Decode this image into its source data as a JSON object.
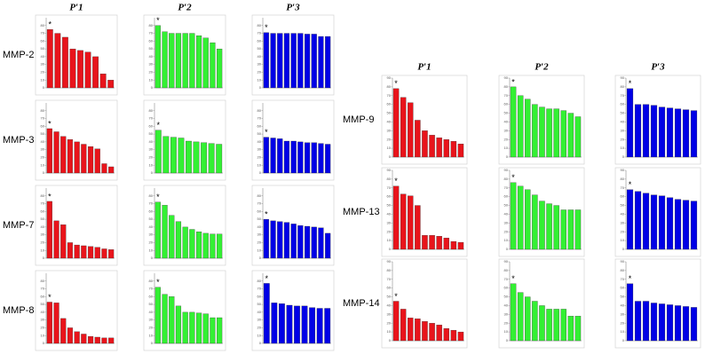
{
  "column_titles": [
    "P′1",
    "P′2",
    "P′3"
  ],
  "row_labels": [
    "MMP-2",
    "MMP-3",
    "MMP-7",
    "MMP-8",
    "MMP-9",
    "MMP-13",
    "MMP-14"
  ],
  "chart_data": [
    {
      "type": "bar",
      "color": "#e8141b",
      "annotation": "*",
      "ylim": [
        0,
        90
      ],
      "yticks": [
        0,
        10,
        20,
        30,
        40,
        50,
        60,
        70,
        80
      ],
      "values": [
        75,
        70,
        65,
        50,
        48,
        46,
        40,
        18,
        10
      ]
    },
    {
      "type": "bar",
      "color": "#33f033",
      "annotation": "*",
      "ylim": [
        0,
        90
      ],
      "yticks": [
        0,
        10,
        20,
        30,
        40,
        50,
        60,
        70,
        80
      ],
      "values": [
        80,
        72,
        70,
        70,
        70,
        70,
        67,
        64,
        58,
        50
      ]
    },
    {
      "type": "bar",
      "color": "#0000e6",
      "annotation": "*",
      "ylim": [
        0,
        90
      ],
      "yticks": [
        0,
        10,
        20,
        30,
        40,
        50,
        60,
        70,
        80
      ],
      "values": [
        71,
        70,
        70,
        70,
        70,
        70,
        69,
        69,
        66,
        66
      ]
    },
    {
      "type": "bar",
      "color": "#e8141b",
      "annotation": "*",
      "ylim": [
        0,
        90
      ],
      "yticks": [
        0,
        10,
        20,
        30,
        40,
        50,
        60,
        70,
        80
      ],
      "values": [
        57,
        53,
        47,
        43,
        40,
        37,
        34,
        31,
        12,
        8
      ]
    },
    {
      "type": "bar",
      "color": "#33f033",
      "annotation": "*",
      "ylim": [
        0,
        90
      ],
      "yticks": [
        0,
        10,
        20,
        30,
        40,
        50,
        60,
        70,
        80
      ],
      "values": [
        55,
        47,
        46,
        45,
        41,
        40,
        39,
        38,
        37
      ]
    },
    {
      "type": "bar",
      "color": "#0000e6",
      "annotation": "*",
      "ylim": [
        0,
        90
      ],
      "yticks": [
        0,
        10,
        20,
        30,
        40,
        50,
        60,
        70,
        80
      ],
      "values": [
        46,
        45,
        44,
        41,
        41,
        40,
        39,
        39,
        38,
        37
      ]
    },
    {
      "type": "bar",
      "color": "#e8141b",
      "annotation": "*",
      "ylim": [
        0,
        90
      ],
      "yticks": [
        0,
        10,
        20,
        30,
        40,
        50,
        60,
        70,
        80
      ],
      "values": [
        73,
        48,
        43,
        20,
        17,
        16,
        15,
        14,
        12,
        11
      ]
    },
    {
      "type": "bar",
      "color": "#33f033",
      "annotation": "*",
      "ylim": [
        0,
        90
      ],
      "yticks": [
        0,
        10,
        20,
        30,
        40,
        50,
        60,
        70,
        80
      ],
      "values": [
        72,
        68,
        55,
        47,
        40,
        37,
        34,
        32,
        31,
        31
      ]
    },
    {
      "type": "bar",
      "color": "#0000e6",
      "annotation": "*",
      "ylim": [
        0,
        90
      ],
      "yticks": [
        0,
        10,
        20,
        30,
        40,
        50,
        60,
        70,
        80
      ],
      "values": [
        50,
        48,
        47,
        46,
        44,
        42,
        41,
        40,
        39,
        32
      ]
    },
    {
      "type": "bar",
      "color": "#e8141b",
      "annotation": "*",
      "ylim": [
        0,
        90
      ],
      "yticks": [
        0,
        10,
        20,
        30,
        40,
        50,
        60,
        70,
        80
      ],
      "values": [
        53,
        52,
        32,
        20,
        15,
        12,
        9,
        8,
        7,
        7
      ]
    },
    {
      "type": "bar",
      "color": "#33f033",
      "annotation": "*",
      "ylim": [
        0,
        90
      ],
      "yticks": [
        0,
        10,
        20,
        30,
        40,
        50,
        60,
        70,
        80
      ],
      "values": [
        72,
        63,
        60,
        48,
        40,
        40,
        39,
        38,
        33,
        33
      ]
    },
    {
      "type": "bar",
      "color": "#0000e6",
      "annotation": "*",
      "ylim": [
        0,
        90
      ],
      "yticks": [
        0,
        10,
        20,
        30,
        40,
        50,
        60,
        70,
        80
      ],
      "values": [
        77,
        52,
        51,
        49,
        48,
        48,
        46,
        45,
        45
      ]
    },
    {
      "type": "bar",
      "color": "#e8141b",
      "annotation": "*",
      "ylim": [
        0,
        90
      ],
      "yticks": [
        0,
        10,
        20,
        30,
        40,
        50,
        60,
        70,
        80,
        90
      ],
      "values": [
        78,
        68,
        62,
        42,
        30,
        25,
        22,
        20,
        18,
        15
      ]
    },
    {
      "type": "bar",
      "color": "#33f033",
      "annotation": "*",
      "ylim": [
        0,
        90
      ],
      "yticks": [
        0,
        10,
        20,
        30,
        40,
        50,
        60,
        70,
        80,
        90
      ],
      "values": [
        80,
        70,
        66,
        60,
        57,
        55,
        55,
        53,
        50,
        46
      ]
    },
    {
      "type": "bar",
      "color": "#0000e6",
      "annotation": "*",
      "ylim": [
        0,
        90
      ],
      "yticks": [
        0,
        10,
        20,
        30,
        40,
        50,
        60,
        70,
        80,
        90
      ],
      "values": [
        78,
        60,
        60,
        59,
        57,
        56,
        55,
        54,
        53
      ]
    },
    {
      "type": "bar",
      "color": "#e8141b",
      "annotation": "*",
      "ylim": [
        0,
        90
      ],
      "yticks": [
        0,
        10,
        20,
        30,
        40,
        50,
        60,
        70,
        80,
        90
      ],
      "values": [
        72,
        63,
        61,
        50,
        16,
        16,
        15,
        13,
        9,
        8
      ]
    },
    {
      "type": "bar",
      "color": "#33f033",
      "annotation": "*",
      "ylim": [
        0,
        90
      ],
      "yticks": [
        0,
        10,
        20,
        30,
        40,
        50,
        60,
        70,
        80,
        90
      ],
      "values": [
        76,
        72,
        68,
        62,
        55,
        52,
        50,
        45,
        45,
        45
      ]
    },
    {
      "type": "bar",
      "color": "#0000e6",
      "annotation": "*",
      "ylim": [
        0,
        90
      ],
      "yticks": [
        0,
        10,
        20,
        30,
        40,
        50,
        60,
        70,
        80,
        90
      ],
      "values": [
        68,
        66,
        64,
        62,
        61,
        59,
        57,
        56,
        55
      ]
    },
    {
      "type": "bar",
      "color": "#e8141b",
      "annotation": "*",
      "ylim": [
        0,
        90
      ],
      "yticks": [
        0,
        10,
        20,
        30,
        40,
        50,
        60,
        70,
        80,
        90
      ],
      "values": [
        45,
        36,
        26,
        25,
        22,
        20,
        18,
        14,
        12,
        10
      ]
    },
    {
      "type": "bar",
      "color": "#33f033",
      "annotation": "*",
      "ylim": [
        0,
        90
      ],
      "yticks": [
        0,
        10,
        20,
        30,
        40,
        50,
        60,
        70,
        80,
        90
      ],
      "values": [
        65,
        55,
        50,
        45,
        40,
        36,
        36,
        36,
        28,
        28
      ]
    },
    {
      "type": "bar",
      "color": "#0000e6",
      "annotation": "*",
      "ylim": [
        0,
        90
      ],
      "yticks": [
        0,
        10,
        20,
        30,
        40,
        50,
        60,
        70,
        80,
        90
      ],
      "values": [
        65,
        45,
        45,
        43,
        42,
        41,
        40,
        39,
        38
      ]
    }
  ]
}
